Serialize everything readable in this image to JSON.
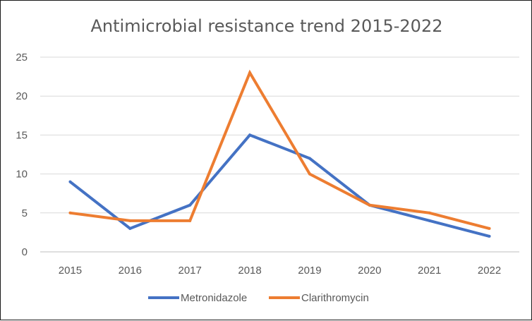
{
  "chart_data": {
    "type": "line",
    "title": "Antimicrobial resistance trend 2015-2022",
    "xlabel": "",
    "ylabel": "",
    "categories": [
      "2015",
      "2016",
      "2017",
      "2018",
      "2019",
      "2020",
      "2021",
      "2022"
    ],
    "ylim": [
      0,
      25
    ],
    "yticks": [
      "0",
      "5",
      "10",
      "15",
      "20",
      "25"
    ],
    "grid": "horizontal",
    "legend_position": "bottom",
    "series": [
      {
        "name": "Metronidazole",
        "color": "#4472C4",
        "values": [
          9,
          3,
          6,
          15,
          12,
          6,
          4,
          2
        ]
      },
      {
        "name": "Clarithromycin",
        "color": "#ED7D31",
        "values": [
          5,
          4,
          4,
          23,
          10,
          6,
          5,
          3
        ]
      }
    ]
  }
}
